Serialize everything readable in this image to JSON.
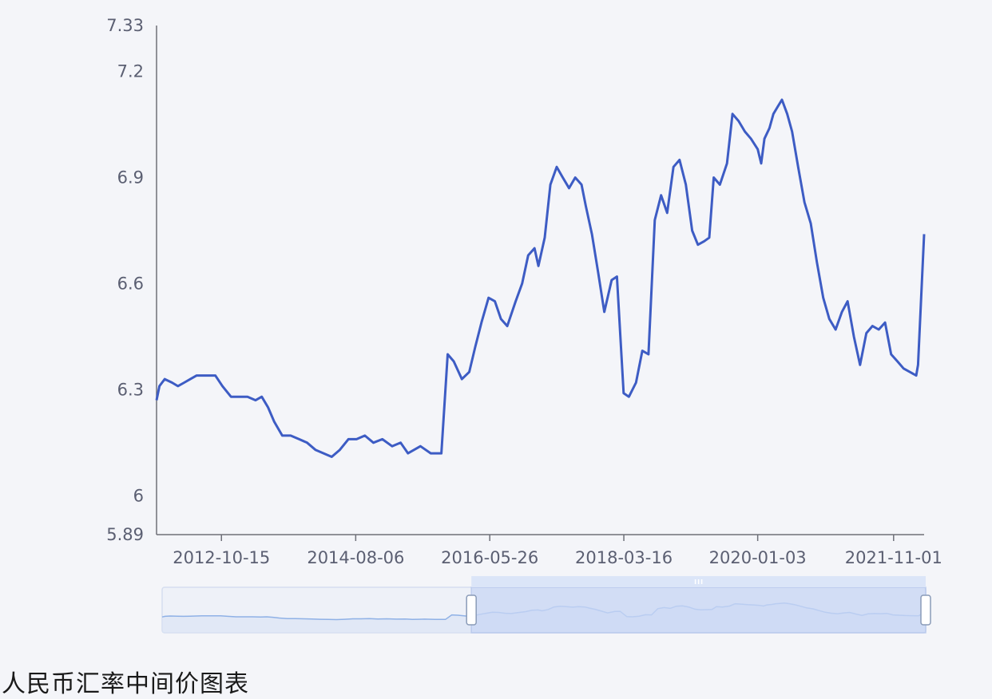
{
  "caption": "人民币汇率中间价图表",
  "colors": {
    "line": "#3d5cc4",
    "axis": "#6e7079",
    "background": "#f4f5f9",
    "zoom_fill": "#c9d7f5",
    "zoom_border": "#aec1ea",
    "preview_line": "#8fb1e6"
  },
  "chart_data": {
    "type": "line",
    "title": "",
    "xlabel": "",
    "ylabel": "",
    "ylim": [
      5.89,
      7.33
    ],
    "y_ticks": [
      "5.89",
      "6",
      "6.3",
      "6.6",
      "6.9",
      "7.2",
      "7.33"
    ],
    "y_tick_values": [
      5.89,
      6.0,
      6.3,
      6.6,
      6.9,
      7.2,
      7.33
    ],
    "x_range": [
      "2011-12-01",
      "2022-03-31"
    ],
    "x_ticks": [
      "2012-10-15",
      "2014-08-06",
      "2016-05-26",
      "2018-03-16",
      "2020-01-03",
      "2021-11-01"
    ],
    "grid": false,
    "zoom_window": {
      "start": 0.405,
      "end": 1.0
    },
    "series": [
      {
        "x": [
          "2011-12-01",
          "2011-12-15",
          "2012-01-10",
          "2012-02-15",
          "2012-03-15",
          "2012-04-15",
          "2012-05-15",
          "2012-06-15",
          "2012-07-20",
          "2012-08-15",
          "2012-09-15",
          "2012-10-20",
          "2012-12-01",
          "2013-01-10",
          "2013-02-20",
          "2013-04-01",
          "2013-05-01",
          "2013-06-01",
          "2013-07-01",
          "2013-08-10",
          "2013-09-20",
          "2013-11-01",
          "2013-12-10",
          "2014-01-20",
          "2014-03-01",
          "2014-04-10",
          "2014-05-20",
          "2014-07-01",
          "2014-08-10",
          "2014-09-20",
          "2014-11-01",
          "2014-12-15",
          "2015-02-01",
          "2015-03-15",
          "2015-04-20",
          "2015-05-20",
          "2015-06-20",
          "2015-08-10",
          "2015-08-12",
          "2015-09-01",
          "2015-10-01",
          "2015-11-01",
          "2015-12-01",
          "2016-01-10",
          "2016-02-15",
          "2016-03-15",
          "2016-04-15",
          "2016-05-20",
          "2016-06-20",
          "2016-07-20",
          "2016-08-20",
          "2016-09-30",
          "2016-11-01",
          "2016-12-01",
          "2017-01-01",
          "2017-01-20",
          "2017-02-20",
          "2017-03-20",
          "2017-04-20",
          "2017-05-20",
          "2017-06-20",
          "2017-07-20",
          "2017-08-20",
          "2017-09-10",
          "2017-10-10",
          "2017-11-10",
          "2017-12-10",
          "2018-01-15",
          "2018-02-10",
          "2018-03-15",
          "2018-04-10",
          "2018-05-15",
          "2018-06-15",
          "2018-07-15",
          "2018-08-15",
          "2018-09-15",
          "2018-10-15",
          "2018-11-15",
          "2018-12-15",
          "2019-01-15",
          "2019-02-15",
          "2019-03-15",
          "2019-04-15",
          "2019-05-10",
          "2019-06-01",
          "2019-07-01",
          "2019-08-05",
          "2019-09-01",
          "2019-10-01",
          "2019-11-01",
          "2019-12-01",
          "2020-01-03",
          "2020-01-20",
          "2020-02-05",
          "2020-03-01",
          "2020-03-20",
          "2020-04-10",
          "2020-05-01",
          "2020-05-27",
          "2020-06-20",
          "2020-07-20",
          "2020-08-20",
          "2020-09-20",
          "2020-10-20",
          "2020-11-20",
          "2020-12-20",
          "2021-01-20",
          "2021-02-20",
          "2021-03-20",
          "2021-04-20",
          "2021-05-20",
          "2021-06-20",
          "2021-07-20",
          "2021-08-20",
          "2021-09-20",
          "2021-10-20",
          "2021-11-20",
          "2021-12-20",
          "2022-01-20",
          "2022-02-20",
          "2022-03-01",
          "2022-03-31"
        ],
        "values": [
          6.27,
          6.31,
          6.33,
          6.32,
          6.31,
          6.32,
          6.33,
          6.34,
          6.34,
          6.34,
          6.34,
          6.31,
          6.28,
          6.28,
          6.28,
          6.27,
          6.28,
          6.25,
          6.21,
          6.17,
          6.17,
          6.16,
          6.15,
          6.13,
          6.12,
          6.11,
          6.13,
          6.16,
          6.16,
          6.17,
          6.15,
          6.16,
          6.14,
          6.15,
          6.12,
          6.13,
          6.14,
          6.12,
          6.12,
          6.12,
          6.12,
          6.4,
          6.38,
          6.33,
          6.35,
          6.42,
          6.49,
          6.56,
          6.55,
          6.5,
          6.48,
          6.55,
          6.6,
          6.68,
          6.7,
          6.65,
          6.73,
          6.88,
          6.93,
          6.9,
          6.87,
          6.9,
          6.88,
          6.82,
          6.74,
          6.63,
          6.52,
          6.61,
          6.62,
          6.29,
          6.28,
          6.32,
          6.41,
          6.4,
          6.78,
          6.85,
          6.8,
          6.93,
          6.95,
          6.88,
          6.75,
          6.71,
          6.72,
          6.73,
          6.9,
          6.88,
          6.94,
          7.08,
          7.06,
          7.03,
          7.01,
          6.98,
          6.94,
          7.01,
          7.04,
          7.08,
          7.1,
          7.12,
          7.08,
          7.03,
          6.93,
          6.83,
          6.77,
          6.66,
          6.56,
          6.5,
          6.47,
          6.52,
          6.55,
          6.45,
          6.37,
          6.46,
          6.48,
          6.47,
          6.49,
          6.4,
          6.38,
          6.36,
          6.35,
          6.34,
          6.37,
          6.74
        ]
      }
    ]
  }
}
